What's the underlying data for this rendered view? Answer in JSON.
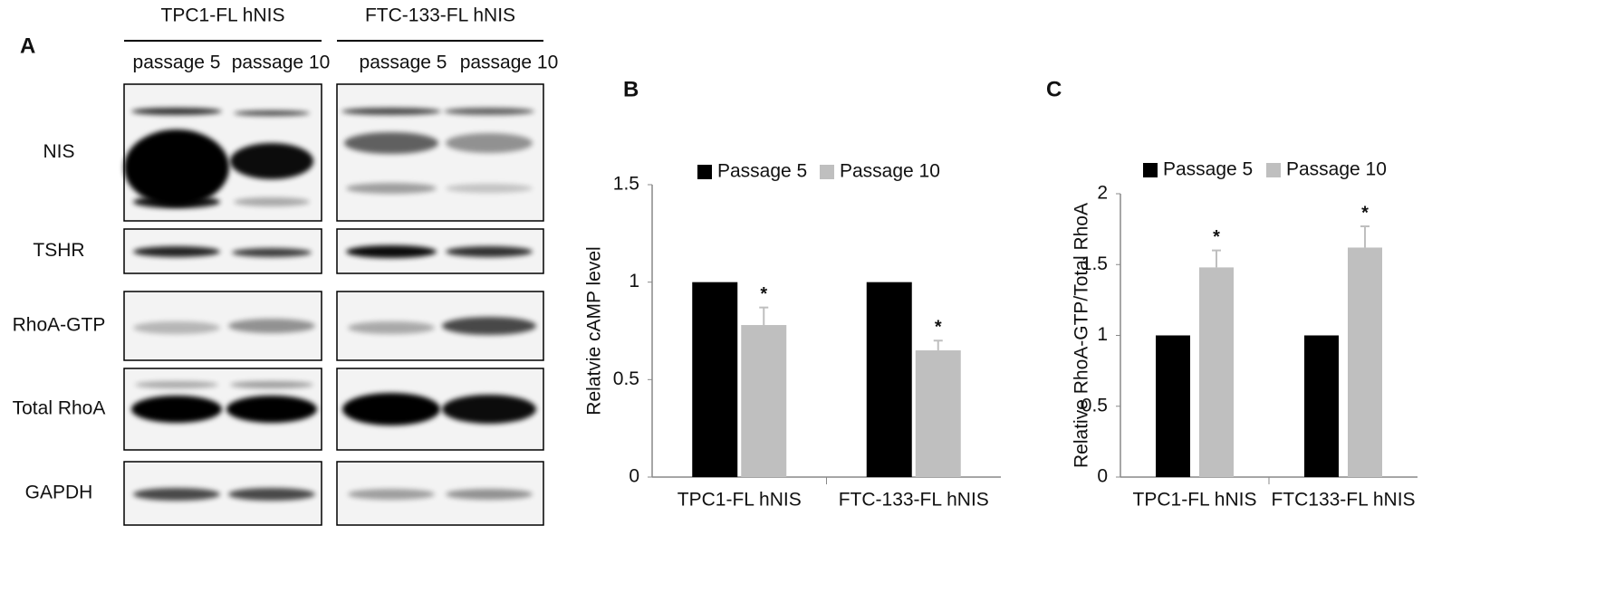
{
  "panel_a": {
    "label": "A",
    "groups": [
      {
        "name": "TPC1-FL hNIS",
        "lanes": [
          "passage 5",
          "passage 10"
        ]
      },
      {
        "name": "FTC-133-FL hNIS",
        "lanes": [
          "passage 5",
          "passage 10"
        ]
      }
    ],
    "rows": [
      "NIS",
      "TSHR",
      "RhoA-GTP",
      "Total RhoA",
      "GAPDH"
    ]
  },
  "chart_data": [
    {
      "type": "bar",
      "panel_label": "B",
      "y_label": "Relatvie cAMP level",
      "categories": [
        "TPC1-FL hNIS",
        "FTC-133-FL hNIS"
      ],
      "series": [
        {
          "name": "Passage 5",
          "color": "#000000",
          "values": [
            1,
            1
          ]
        },
        {
          "name": "Passage 10",
          "color": "#bfbfbf",
          "values": [
            0.78,
            0.65
          ],
          "errors": [
            0.09,
            0.05
          ],
          "annotations": [
            "*",
            "*"
          ]
        }
      ],
      "ylim": [
        0,
        1.5
      ],
      "yticks": [
        0,
        0.5,
        1,
        1.5
      ],
      "grid": false,
      "legend": "top"
    },
    {
      "type": "bar",
      "panel_label": "C",
      "y_label": "Relative RhoA-GTP/Total RhoA",
      "categories": [
        "TPC1-FL hNIS",
        "FTC133-FL hNIS"
      ],
      "series": [
        {
          "name": "Passage 5",
          "color": "#000000",
          "values": [
            1,
            1
          ]
        },
        {
          "name": "Passage 10",
          "color": "#bfbfbf",
          "values": [
            1.48,
            1.62
          ],
          "errors": [
            0.12,
            0.15
          ],
          "annotations": [
            "*",
            "*"
          ]
        }
      ],
      "ylim": [
        0,
        2
      ],
      "yticks": [
        0,
        0.5,
        1,
        1.5,
        2
      ],
      "grid": false,
      "legend": "top"
    }
  ]
}
